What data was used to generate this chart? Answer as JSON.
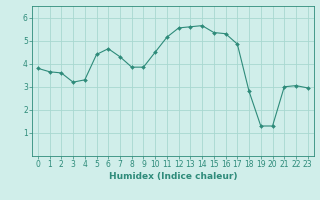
{
  "x": [
    0,
    1,
    2,
    3,
    4,
    5,
    6,
    7,
    8,
    9,
    10,
    11,
    12,
    13,
    14,
    15,
    16,
    17,
    18,
    19,
    20,
    21,
    22,
    23
  ],
  "y": [
    3.8,
    3.65,
    3.6,
    3.2,
    3.3,
    4.4,
    4.65,
    4.3,
    3.85,
    3.85,
    4.5,
    5.15,
    5.55,
    5.6,
    5.65,
    5.35,
    5.3,
    4.85,
    2.8,
    1.3,
    1.3,
    3.0,
    3.05,
    2.95
  ],
  "line_color": "#2e8b7a",
  "marker": "D",
  "marker_size": 2.0,
  "bg_color": "#d0eeea",
  "grid_color": "#a8d8d0",
  "xlabel": "Humidex (Indice chaleur)",
  "xlim": [
    -0.5,
    23.5
  ],
  "ylim": [
    0,
    6.5
  ],
  "yticks": [
    1,
    2,
    3,
    4,
    5,
    6
  ],
  "xticks": [
    0,
    1,
    2,
    3,
    4,
    5,
    6,
    7,
    8,
    9,
    10,
    11,
    12,
    13,
    14,
    15,
    16,
    17,
    18,
    19,
    20,
    21,
    22,
    23
  ],
  "tick_color": "#2e8b7a",
  "axis_color": "#2e8b7a",
  "label_fontsize": 6.5,
  "tick_fontsize": 5.5
}
